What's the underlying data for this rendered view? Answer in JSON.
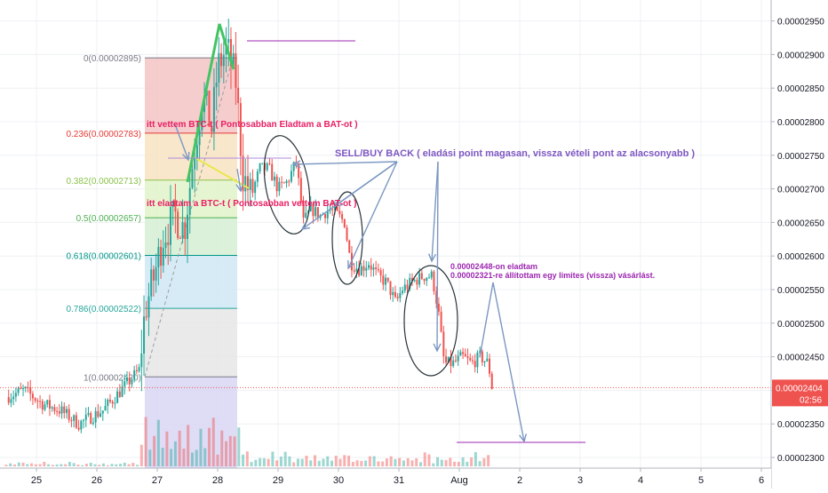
{
  "chart_data": {
    "type": "candlestick",
    "title": "",
    "xlabel": "",
    "ylabel": "",
    "ylim": [
      2.28e-05,
      2.98e-05
    ],
    "grid": true,
    "y_ticks": [
      {
        "value": 2.3e-05,
        "label": "0.00002300"
      },
      {
        "value": 2.35e-05,
        "label": "0.00002350"
      },
      {
        "value": 2.4e-05,
        "label": "0.00002400"
      },
      {
        "value": 2.45e-05,
        "label": "0.00002450"
      },
      {
        "value": 2.5e-05,
        "label": "0.00002500"
      },
      {
        "value": 2.55e-05,
        "label": "0.00002550"
      },
      {
        "value": 2.6e-05,
        "label": "0.00002600"
      },
      {
        "value": 2.65e-05,
        "label": "0.00002650"
      },
      {
        "value": 2.7e-05,
        "label": "0.00002700"
      },
      {
        "value": 2.75e-05,
        "label": "0.00002750"
      },
      {
        "value": 2.8e-05,
        "label": "0.00002800"
      },
      {
        "value": 2.85e-05,
        "label": "0.00002850"
      },
      {
        "value": 2.9e-05,
        "label": "0.00002900"
      },
      {
        "value": 2.95e-05,
        "label": "0.00002950"
      }
    ],
    "xlim": [
      24.5,
      6.2
    ],
    "x_ticks": [
      {
        "day": 25,
        "label": "25"
      },
      {
        "day": 26,
        "label": "26"
      },
      {
        "day": 27,
        "label": "27"
      },
      {
        "day": 28,
        "label": "28"
      },
      {
        "day": 29,
        "label": "29"
      },
      {
        "day": 30,
        "label": "30"
      },
      {
        "day": 31,
        "label": "31"
      },
      {
        "day": 32,
        "label": "Aug"
      },
      {
        "day": 33,
        "label": "2"
      },
      {
        "day": 34,
        "label": "3"
      },
      {
        "day": 35,
        "label": "4"
      },
      {
        "day": 36,
        "label": "5"
      },
      {
        "day": 37,
        "label": "6"
      }
    ],
    "current_price": {
      "value": 2.404e-05,
      "label": "0.00002404",
      "countdown": "02:56"
    },
    "price_path": [
      [
        24.5,
        2.39e-05
      ],
      [
        24.8,
        2.4e-05
      ],
      [
        25.1,
        2.38e-05
      ],
      [
        25.4,
        2.37e-05
      ],
      [
        25.7,
        2.35e-05
      ],
      [
        25.9,
        2.36e-05
      ],
      [
        26.1,
        2.37e-05
      ],
      [
        26.3,
        2.39e-05
      ],
      [
        26.5,
        2.41e-05
      ],
      [
        26.7,
        2.43e-05
      ],
      [
        26.8,
        2.52e-05
      ],
      [
        26.95,
        2.57e-05
      ],
      [
        27.1,
        2.63e-05
      ],
      [
        27.3,
        2.66e-05
      ],
      [
        27.45,
        2.64e-05
      ],
      [
        27.6,
        2.75e-05
      ],
      [
        27.75,
        2.84e-05
      ],
      [
        27.9,
        2.79e-05
      ],
      [
        28.0,
        2.88e-05
      ],
      [
        28.15,
        2.91e-05
      ],
      [
        28.3,
        2.86e-05
      ],
      [
        28.42,
        2.72e-05
      ],
      [
        28.55,
        2.69e-05
      ],
      [
        28.7,
        2.73e-05
      ],
      [
        28.85,
        2.73e-05
      ],
      [
        29.0,
        2.7e-05
      ],
      [
        29.15,
        2.71e-05
      ],
      [
        29.3,
        2.74e-05
      ],
      [
        29.42,
        2.65e-05
      ],
      [
        29.55,
        2.67e-05
      ],
      [
        29.7,
        2.66e-05
      ],
      [
        29.85,
        2.67e-05
      ],
      [
        30.0,
        2.66e-05
      ],
      [
        30.1,
        2.65e-05
      ],
      [
        30.2,
        2.59e-05
      ],
      [
        30.35,
        2.58e-05
      ],
      [
        30.5,
        2.59e-05
      ],
      [
        30.65,
        2.57e-05
      ],
      [
        30.8,
        2.56e-05
      ],
      [
        30.95,
        2.53e-05
      ],
      [
        31.05,
        2.55e-05
      ],
      [
        31.2,
        2.56e-05
      ],
      [
        31.4,
        2.57e-05
      ],
      [
        31.55,
        2.57e-05
      ],
      [
        31.65,
        2.52e-05
      ],
      [
        31.75,
        2.44e-05
      ],
      [
        31.9,
        2.44e-05
      ],
      [
        32.05,
        2.45e-05
      ],
      [
        32.2,
        2.44e-05
      ],
      [
        32.35,
        2.45e-05
      ],
      [
        32.48,
        2.44e-05
      ],
      [
        32.55,
        2.4e-05
      ]
    ],
    "volume": {
      "low": [
        2,
        3,
        2,
        4,
        3,
        2,
        3,
        2,
        3,
        4,
        3,
        2,
        3,
        3,
        2,
        4,
        3,
        3,
        2,
        3,
        4,
        2,
        3,
        3
      ],
      "rally": [
        34,
        48,
        22,
        60,
        28,
        44,
        30,
        55,
        26,
        40,
        18,
        50,
        70,
        24,
        38,
        20,
        46,
        32,
        26,
        42,
        22,
        30,
        36,
        18
      ],
      "decline": [
        8,
        12,
        6,
        14,
        10,
        5,
        9,
        7,
        11,
        13,
        6,
        8,
        10,
        7,
        9,
        12,
        5,
        8,
        14,
        10,
        6,
        9,
        7,
        11
      ]
    },
    "fibonacci": [
      {
        "ratio": "0",
        "price": 2.895e-05,
        "label": "0(0.00002895)",
        "color": "#787b86",
        "band": "#f3c4c4"
      },
      {
        "ratio": "0.236",
        "price": 2.783e-05,
        "label": "0.236(0.00002783)",
        "color": "#e53935",
        "band": "#f8e3c2"
      },
      {
        "ratio": "0.382",
        "price": 2.713e-05,
        "label": "0.382(0.00002713)",
        "color": "#8bc34a",
        "band": "#e2f3c9"
      },
      {
        "ratio": "0.5",
        "price": 2.657e-05,
        "label": "0.5(0.00002657)",
        "color": "#4caf50",
        "band": "#d6efd4"
      },
      {
        "ratio": "0.618",
        "price": 2.601e-05,
        "label": "0.618(0.00002601)",
        "color": "#009688",
        "band": "#cfe7f4"
      },
      {
        "ratio": "0.786",
        "price": 2.522e-05,
        "label": "0.786(0.00002522)",
        "color": "#26a69a",
        "band": "#e6e6e6"
      },
      {
        "ratio": "1",
        "price": 2.42e-05,
        "label": "1(0.00002420)",
        "color": "#787b86",
        "band": "#d9d6f5"
      }
    ],
    "colors": {
      "up": "#26a69a",
      "down": "#ef5350",
      "drawing": "#7b97c2",
      "annotation": "#e91e63",
      "purple": "#9c27b0",
      "note": "#7e57c2"
    },
    "annotations": {
      "bought": "itt vettem BTC-t ( Pontosabban Eladtam a BAT-ot )",
      "sold": "itt eladtam a BTC-t ( Pontosabban vettem BAT-ot )",
      "sell_buy_back": "SELL/BUY BACK ( eladási point magasan, vissza vételi pont az alacsonyabb )",
      "sold_at": "0.00002448-on eladtam",
      "limit_order": "0.00002321-re állítottam egy limites (vissza) vásárlást."
    }
  }
}
